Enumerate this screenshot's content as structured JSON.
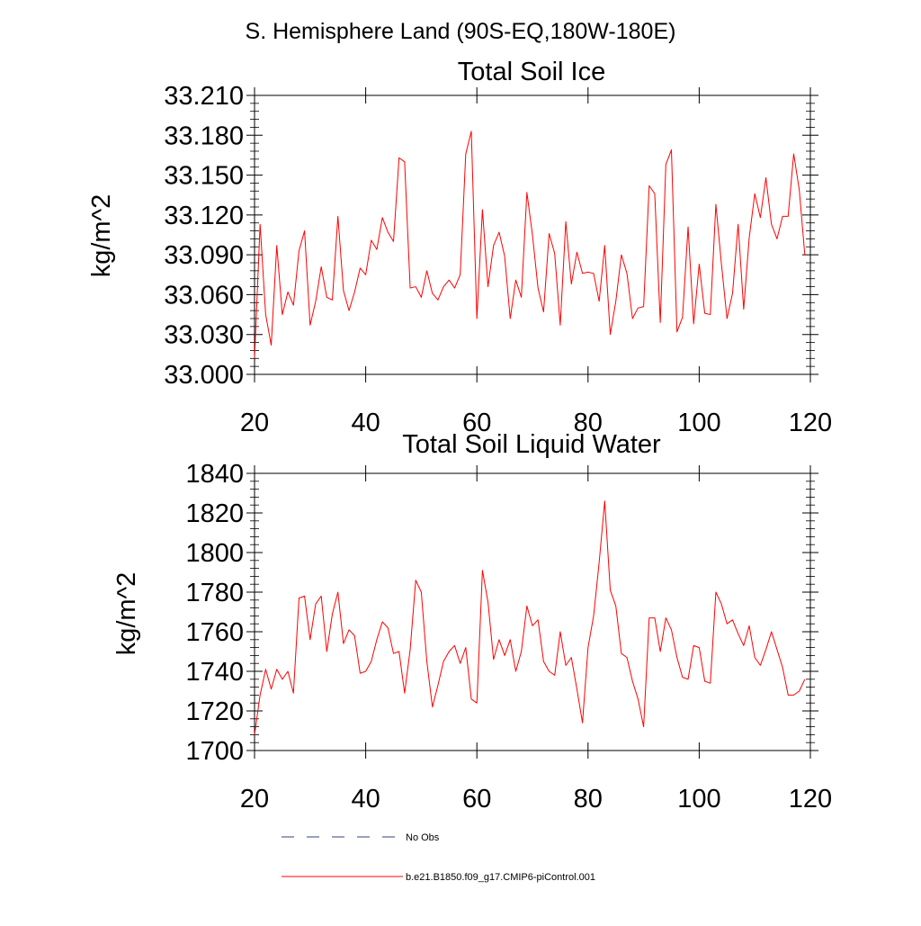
{
  "suptitle": "S. Hemisphere Land (90S-EQ,180W-180E)",
  "colors": {
    "model_line": "#ff0000",
    "obs_line": "#33407a",
    "axis": "#000000"
  },
  "legend": [
    {
      "label": "No Obs",
      "style": "dashed",
      "color": "#33407a"
    },
    {
      "label": "b.e21.B1850.f09_g17.CMIP6-piControl.001",
      "style": "solid",
      "color": "#ff0000"
    }
  ],
  "chart_data": [
    {
      "type": "line",
      "title": "Total Soil Ice",
      "xlabel": "",
      "ylabel": "kg/m^2",
      "xlim": [
        20,
        120
      ],
      "ylim": [
        33.0,
        33.21
      ],
      "xticks": [
        "20",
        "40",
        "60",
        "80",
        "100",
        "120"
      ],
      "yticks": [
        "33.000",
        "33.030",
        "33.060",
        "33.090",
        "33.120",
        "33.150",
        "33.180",
        "33.210"
      ],
      "series": [
        {
          "name": "b.e21.B1850.f09_g17.CMIP6-piControl.001",
          "x_start": 20,
          "values": [
            33.012,
            33.113,
            33.045,
            33.022,
            33.097,
            33.045,
            33.062,
            33.052,
            33.093,
            33.108,
            33.037,
            33.055,
            33.081,
            33.058,
            33.056,
            33.119,
            33.063,
            33.048,
            33.062,
            33.08,
            33.075,
            33.101,
            33.094,
            33.118,
            33.107,
            33.1,
            33.163,
            33.16,
            33.065,
            33.066,
            33.058,
            33.078,
            33.061,
            33.056,
            33.066,
            33.071,
            33.065,
            33.075,
            33.166,
            33.183,
            33.042,
            33.124,
            33.066,
            33.097,
            33.107,
            33.089,
            33.042,
            33.071,
            33.058,
            33.137,
            33.105,
            33.065,
            33.047,
            33.106,
            33.091,
            33.037,
            33.115,
            33.068,
            33.092,
            33.076,
            33.077,
            33.076,
            33.055,
            33.097,
            33.03,
            33.055,
            33.09,
            33.076,
            33.042,
            33.05,
            33.051,
            33.142,
            33.136,
            33.039,
            33.158,
            33.169,
            33.032,
            33.043,
            33.111,
            33.038,
            33.083,
            33.046,
            33.045,
            33.128,
            33.083,
            33.042,
            33.061,
            33.113,
            33.049,
            33.103,
            33.136,
            33.118,
            33.148,
            33.113,
            33.102,
            33.119,
            33.119,
            33.166,
            33.139,
            33.09
          ]
        }
      ]
    },
    {
      "type": "line",
      "title": "Total Soil Liquid Water",
      "xlabel": "",
      "ylabel": "kg/m^2",
      "xlim": [
        20,
        120
      ],
      "ylim": [
        1700,
        1840
      ],
      "xticks": [
        "20",
        "40",
        "60",
        "80",
        "100",
        "120"
      ],
      "yticks": [
        "1700",
        "1720",
        "1740",
        "1760",
        "1780",
        "1800",
        "1820",
        "1840"
      ],
      "series": [
        {
          "name": "b.e21.B1850.f09_g17.CMIP6-piControl.001",
          "x_start": 20,
          "values": [
            1708,
            1728,
            1741,
            1731,
            1741,
            1736,
            1740,
            1729,
            1777,
            1778,
            1756,
            1774,
            1778,
            1750,
            1769,
            1780,
            1754,
            1761,
            1758,
            1739,
            1740,
            1745,
            1756,
            1765,
            1762,
            1749,
            1750,
            1729,
            1751,
            1786,
            1780,
            1745,
            1722,
            1733,
            1745,
            1750,
            1753,
            1744,
            1752,
            1726,
            1724,
            1791,
            1775,
            1746,
            1756,
            1748,
            1756,
            1740,
            1750,
            1773,
            1763,
            1766,
            1745,
            1740,
            1738,
            1760,
            1743,
            1747,
            1731,
            1714,
            1752,
            1768,
            1795,
            1826,
            1781,
            1773,
            1749,
            1747,
            1735,
            1726,
            1712,
            1767,
            1767,
            1750,
            1767,
            1761,
            1747,
            1737,
            1736,
            1753,
            1752,
            1735,
            1734,
            1780,
            1774,
            1764,
            1766,
            1759,
            1753,
            1763,
            1747,
            1743,
            1751,
            1760,
            1751,
            1742,
            1728,
            1728,
            1730,
            1736
          ]
        }
      ]
    }
  ]
}
